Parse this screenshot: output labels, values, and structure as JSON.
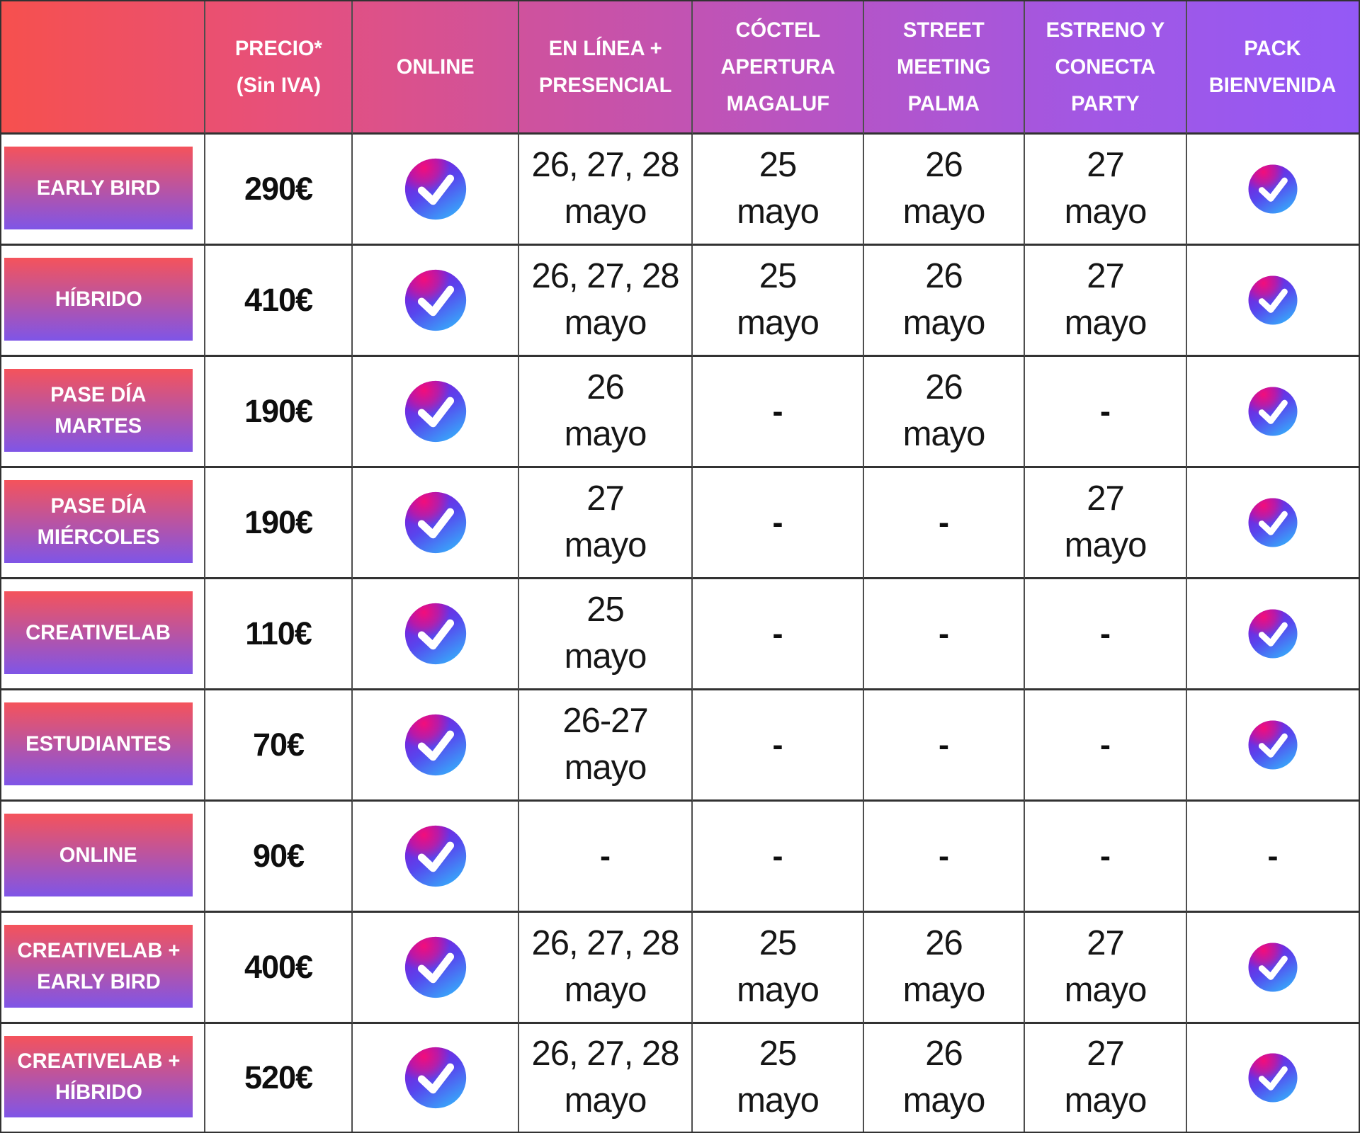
{
  "table": {
    "columns": [
      {
        "key": "plan",
        "label": ""
      },
      {
        "key": "price",
        "label": "PRECIO*\n(Sin IVA)"
      },
      {
        "key": "online",
        "label": "ONLINE"
      },
      {
        "key": "inperson",
        "label": "EN LÍNEA +\nPRESENCIAL"
      },
      {
        "key": "coctel",
        "label": "CÓCTEL\nAPERTURA\nMAGALUF"
      },
      {
        "key": "street",
        "label": "STREET\nMEETING\nPALMA"
      },
      {
        "key": "estreno",
        "label": "ESTRENO Y\nCONECTA\nPARTY"
      },
      {
        "key": "pack",
        "label": "PACK\nBIENVENIDA"
      }
    ],
    "rows": [
      {
        "plan": "EARLY BIRD",
        "price": "290€",
        "online": "check",
        "inperson": "26, 27, 28\nmayo",
        "coctel": "25\nmayo",
        "street": "26\nmayo",
        "estreno": "27\nmayo",
        "pack": "check"
      },
      {
        "plan": "HÍBRIDO",
        "price": "410€",
        "online": "check",
        "inperson": "26, 27, 28\nmayo",
        "coctel": "25\nmayo",
        "street": "26\nmayo",
        "estreno": "27\nmayo",
        "pack": "check"
      },
      {
        "plan": "PASE DÍA\nMARTES",
        "price": "190€",
        "online": "check",
        "inperson": "26\nmayo",
        "coctel": "-",
        "street": "26\nmayo",
        "estreno": "-",
        "pack": "check"
      },
      {
        "plan": "PASE DÍA\nMIÉRCOLES",
        "price": "190€",
        "online": "check",
        "inperson": "27\nmayo",
        "coctel": "-",
        "street": "-",
        "estreno": "27\nmayo",
        "pack": "check"
      },
      {
        "plan": "CREATIVELAB",
        "price": "110€",
        "online": "check",
        "inperson": "25\nmayo",
        "coctel": "-",
        "street": "-",
        "estreno": "-",
        "pack": "check"
      },
      {
        "plan": "ESTUDIANTES",
        "price": "70€",
        "online": "check",
        "inperson": "26-27\nmayo",
        "coctel": "-",
        "street": "-",
        "estreno": "-",
        "pack": "check"
      },
      {
        "plan": "ONLINE",
        "price": "90€",
        "online": "check",
        "inperson": "-",
        "coctel": "-",
        "street": "-",
        "estreno": "-",
        "pack": "-"
      },
      {
        "plan": "CREATIVELAB +\nEARLY BIRD",
        "price": "400€",
        "online": "check",
        "inperson": "26, 27, 28\nmayo",
        "coctel": "25\nmayo",
        "street": "26\nmayo",
        "estreno": "27\nmayo",
        "pack": "check"
      },
      {
        "plan": "CREATIVELAB +\nHÍBRIDO",
        "price": "520€",
        "online": "check",
        "inperson": "26, 27, 28\nmayo",
        "coctel": "25\nmayo",
        "street": "26\nmayo",
        "estreno": "27\nmayo",
        "pack": "check"
      }
    ],
    "icons": {
      "check_icon": "gradient circle with white checkmark",
      "not_included": "-"
    },
    "colors": {
      "header_gradient": [
        "#f6504e",
        "#e7507a",
        "#cd52a0",
        "#b754c4",
        "#a257e3",
        "#9459f6"
      ],
      "badge_gradient_top": "#f5535b",
      "badge_gradient_bottom": "#7f55e7",
      "icon_pink": "#f20e7b",
      "icon_purple": "#8812d3",
      "icon_mid": "#5746ee",
      "icon_blue": "#3aa0f9",
      "grid_line_vertical": "#4e4e4e",
      "grid_line_horizontal": "#323232",
      "header_text": "#ffffff",
      "body_text": "#0e0e0e"
    }
  },
  "chart_data": {
    "type": "table",
    "title": "",
    "columns": [
      "",
      "PRECIO* (Sin IVA)",
      "ONLINE",
      "EN LÍNEA + PRESENCIAL",
      "CÓCTEL APERTURA MAGALUF",
      "STREET MEETING PALMA",
      "ESTRENO Y CONECTA PARTY",
      "PACK BIENVENIDA"
    ],
    "rows": [
      [
        "EARLY BIRD",
        "290€",
        "✓",
        "26, 27, 28 mayo",
        "25 mayo",
        "26 mayo",
        "27 mayo",
        "✓"
      ],
      [
        "HÍBRIDO",
        "410€",
        "✓",
        "26, 27, 28 mayo",
        "25 mayo",
        "26 mayo",
        "27 mayo",
        "✓"
      ],
      [
        "PASE DÍA MARTES",
        "190€",
        "✓",
        "26 mayo",
        "-",
        "26 mayo",
        "-",
        "✓"
      ],
      [
        "PASE DÍA MIÉRCOLES",
        "190€",
        "✓",
        "27 mayo",
        "-",
        "-",
        "27 mayo",
        "✓"
      ],
      [
        "CREATIVELAB",
        "110€",
        "✓",
        "25 mayo",
        "-",
        "-",
        "-",
        "✓"
      ],
      [
        "ESTUDIANTES",
        "70€",
        "✓",
        "26-27 mayo",
        "-",
        "-",
        "-",
        "✓"
      ],
      [
        "ONLINE",
        "90€",
        "✓",
        "-",
        "-",
        "-",
        "-",
        "-"
      ],
      [
        "CREATIVELAB + EARLY BIRD",
        "400€",
        "✓",
        "26, 27, 28 mayo",
        "25 mayo",
        "26 mayo",
        "27 mayo",
        "✓"
      ],
      [
        "CREATIVELAB + HÍBRIDO",
        "520€",
        "✓",
        "26, 27, 28 mayo",
        "25 mayo",
        "26 mayo",
        "27 mayo",
        "✓"
      ]
    ]
  }
}
